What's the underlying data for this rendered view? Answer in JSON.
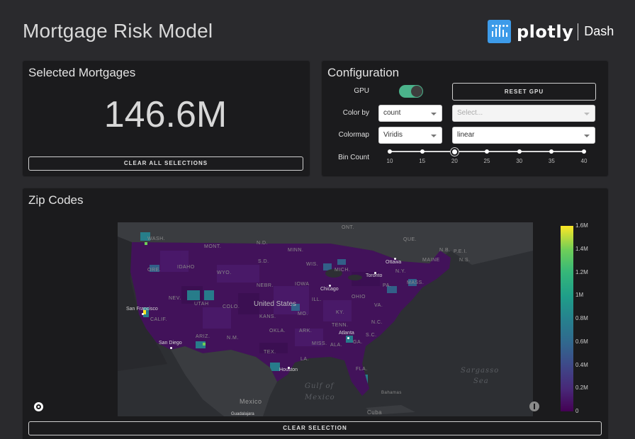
{
  "header": {
    "title": "Mortgage Risk Model",
    "logo_word": "plotly",
    "logo_product": "Dash"
  },
  "selected_panel": {
    "title": "Selected Mortgages",
    "count": "146.6M",
    "clear_all_label": "CLEAR ALL SELECTIONS"
  },
  "config": {
    "title": "Configuration",
    "gpu_label": "GPU",
    "gpu_enabled": true,
    "reset_gpu_label": "RESET GPU",
    "color_by_label": "Color by",
    "color_by_value": "count",
    "color_by_secondary_placeholder": "Select...",
    "colormap_label": "Colormap",
    "colormap_value": "Viridis",
    "scale_value": "linear",
    "bin_count_label": "Bin Count",
    "bin_ticks": [
      "10",
      "15",
      "20",
      "25",
      "30",
      "35",
      "40"
    ],
    "bin_count_value": 20
  },
  "zip_panel": {
    "title": "Zip Codes",
    "clear_selection_label": "CLEAR SELECTION"
  },
  "map": {
    "labels": {
      "ont": "ONT.",
      "wash": "WASH.",
      "mont": "MONT.",
      "nd": "N.D.",
      "minn": "MINN.",
      "ore": "ORE.",
      "idaho": "IDAHO",
      "wyo": "WYO.",
      "sd": "S.D.",
      "wis": "WIS.",
      "mich": "MICH.",
      "nev": "NEV.",
      "utah": "UTAH",
      "nebr": "NEBR.",
      "iowa": "IOWA",
      "ill": "ILL.",
      "ohio": "OHIO",
      "pa": "PA.",
      "calif": "CALIF.",
      "colo": "COLO.",
      "kans": "KANS.",
      "mo": "MO.",
      "ky": "KY.",
      "va": "VA.",
      "ariz": "ARIZ.",
      "nm": "N.M.",
      "okla": "OKLA.",
      "ark": "ARK.",
      "tenn": "TENN.",
      "nc": "N.C.",
      "sc": "S.C.",
      "miss": "MISS.",
      "ala": "ALA.",
      "ga": "GA.",
      "tex": "TEX.",
      "la": "LA.",
      "fla": "FLA.",
      "maine": "MAINE",
      "nb": "N.B.",
      "pei": "P.E.I.",
      "ns": "N.S.",
      "mass": "MASS.",
      "que": "QUE.",
      "ny": "N.Y.",
      "united_states": "United States",
      "mexico": "Mexico",
      "cuba": "Cuba",
      "bahamas": "Bahamas",
      "gulf_1": "Gulf of",
      "gulf_2": "Mexico",
      "sargasso_1": "Sargasso",
      "sargasso_2": "Sea"
    },
    "cities": {
      "san_francisco": "San Francisco",
      "san_diego": "San Diego",
      "chicago": "Chicago",
      "toronto": "Toronto",
      "ottawa": "Ottawa",
      "atlanta": "Atlanta",
      "houston": "Houston",
      "guadalajara": "Guadalajara"
    }
  },
  "colorbar": {
    "ticks": [
      "1.6M",
      "1.4M",
      "1.2M",
      "1M",
      "0.8M",
      "0.6M",
      "0.4M",
      "0.2M",
      "0"
    ],
    "colors": [
      "#440154",
      "#3e4989",
      "#26828e",
      "#35b779",
      "#fde725"
    ]
  }
}
